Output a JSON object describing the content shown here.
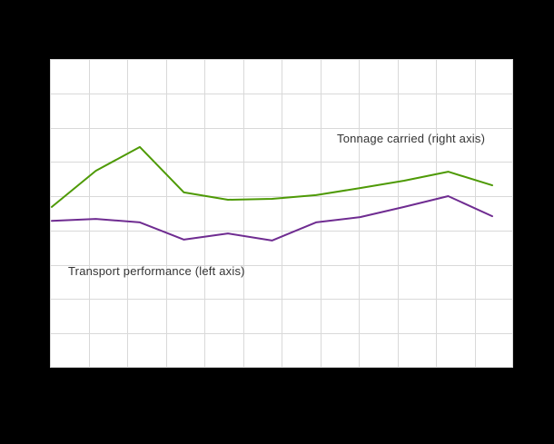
{
  "chart_data": {
    "type": "line",
    "title": "",
    "xlabel": "",
    "ylabel": "",
    "x": [
      1,
      2,
      3,
      4,
      5,
      6,
      7,
      8,
      9,
      10,
      11
    ],
    "series": [
      {
        "name": "Tonnage carried (right axis)",
        "axis": "right",
        "color": "#4e9a06",
        "values": [
          52.1,
          63.8,
          71.5,
          56.8,
          54.4,
          54.7,
          55.9,
          58.2,
          60.6,
          63.5,
          59.1
        ]
      },
      {
        "name": "Transport performance (left axis)",
        "axis": "left",
        "color": "#6f2c91",
        "values": [
          47.6,
          48.2,
          47.1,
          41.5,
          43.5,
          41.2,
          47.1,
          48.8,
          52.1,
          55.6,
          49.1
        ]
      }
    ],
    "annotations": [
      {
        "text": "Tonnage carried  (right axis)"
      },
      {
        "text": "Transport  performance  (left axis)"
      }
    ],
    "ylim": [
      0,
      100
    ],
    "grid": true,
    "grid_cols": 12,
    "grid_rows": 9,
    "axis_tick_labels_visible": false,
    "legend_position": "inline-annotations"
  },
  "colors": {
    "background": "#000000",
    "plot_background": "#ffffff",
    "gridline": "#d9d9d9",
    "text": "#333333",
    "tonnage_line": "#4e9a06",
    "transport_line": "#6f2c91"
  }
}
